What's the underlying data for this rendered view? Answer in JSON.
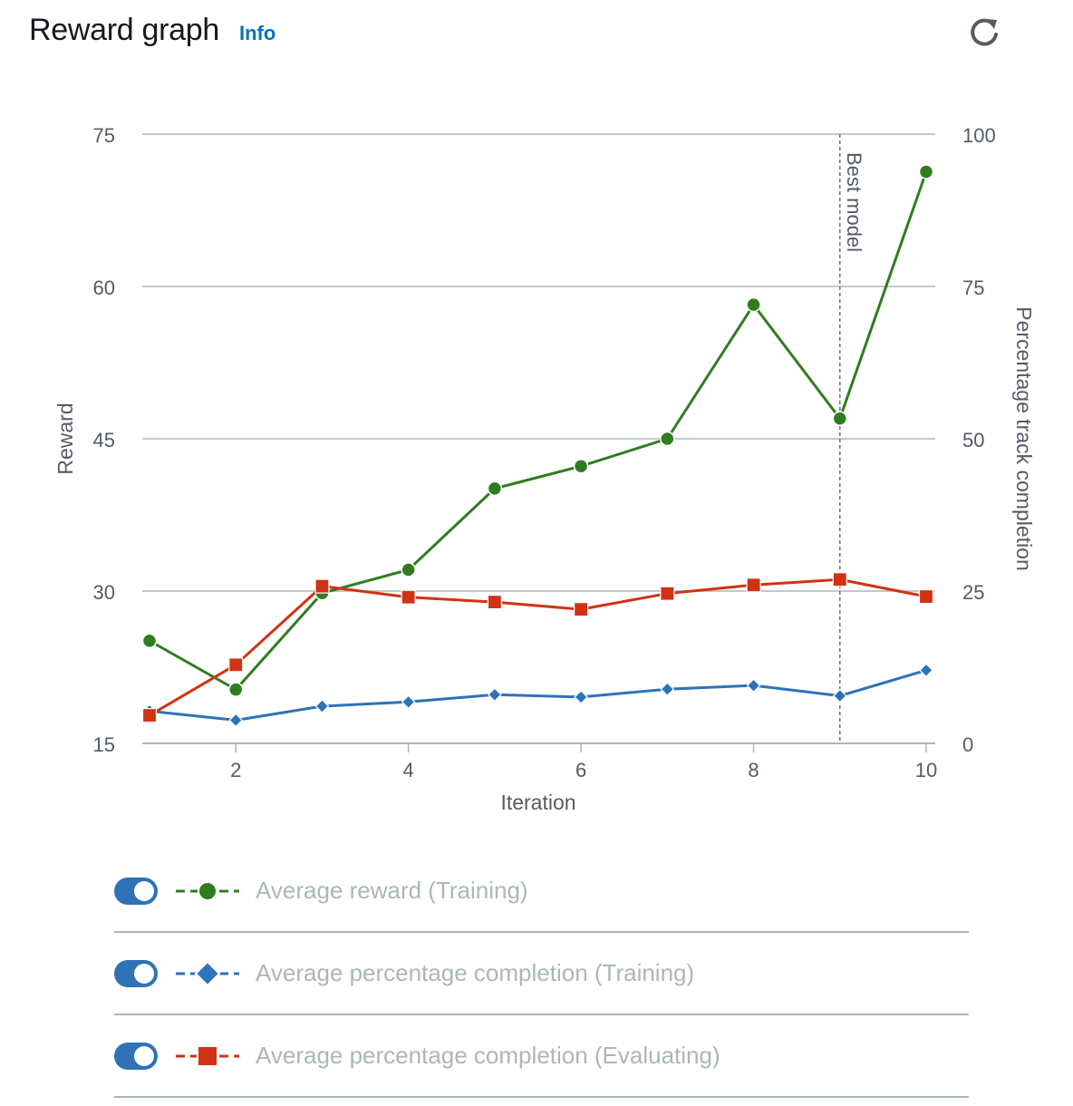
{
  "header": {
    "title": "Reward graph",
    "info_label": "Info"
  },
  "refresh": {
    "icon": "refresh-icon"
  },
  "chart_data": {
    "type": "line",
    "title": "Reward graph",
    "xlabel": "Iteration",
    "ylabel": "Reward",
    "y2label": "Percentage track completion",
    "xlim": [
      1,
      10
    ],
    "ylim": [
      15,
      75
    ],
    "y2lim": [
      0,
      100
    ],
    "xticks": [
      2,
      4,
      6,
      8,
      10
    ],
    "yticks": [
      15,
      30,
      45,
      60,
      75
    ],
    "y2ticks": [
      0,
      25,
      50,
      75,
      100
    ],
    "grid": true,
    "x": [
      1,
      2,
      3,
      4,
      5,
      6,
      7,
      8,
      9,
      10
    ],
    "series": [
      {
        "name": "Average reward (Training)",
        "axis": "left",
        "marker": "circle",
        "color": "#2f7d1f",
        "values": [
          25.1,
          20.3,
          29.8,
          32.1,
          40.1,
          42.3,
          45.0,
          58.2,
          47.0,
          71.3
        ]
      },
      {
        "name": "Average percentage completion (Training)",
        "axis": "right",
        "marker": "diamond",
        "color": "#2e72b8",
        "values": [
          5.3,
          3.8,
          6.1,
          6.8,
          8.0,
          7.6,
          8.9,
          9.5,
          7.8,
          12.0
        ]
      },
      {
        "name": "Average percentage completion (Evaluating)",
        "axis": "right",
        "marker": "square",
        "color": "#d13212",
        "values": [
          4.6,
          12.9,
          25.8,
          24.0,
          23.2,
          22.0,
          24.6,
          26.0,
          26.9,
          24.1
        ]
      }
    ],
    "annotation": {
      "x": 9,
      "label": "Best model"
    }
  },
  "legend": [
    {
      "label": "Average reward (Training)",
      "enabled": true
    },
    {
      "label": "Average percentage completion (Training)",
      "enabled": true
    },
    {
      "label": "Average percentage completion (Evaluating)",
      "enabled": true
    }
  ]
}
